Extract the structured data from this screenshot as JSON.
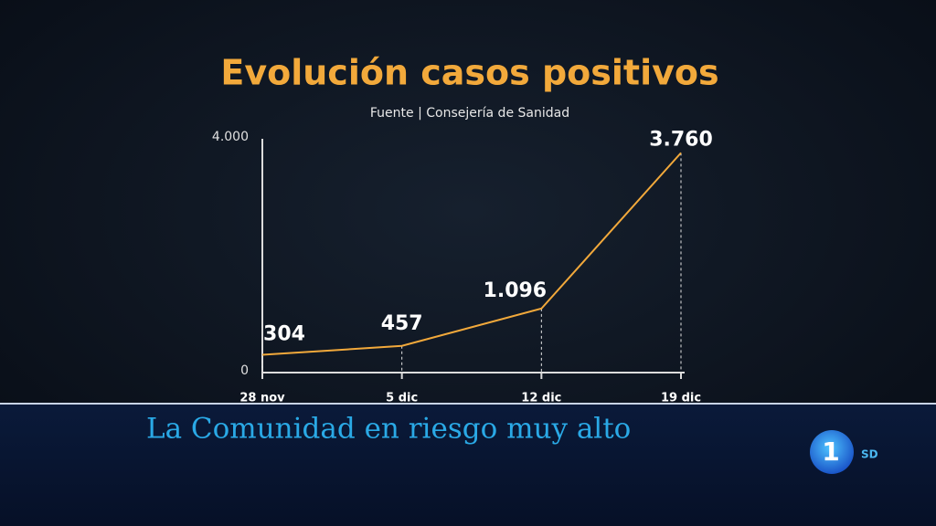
{
  "chart_data": {
    "type": "line",
    "title": "Evolución casos positivos",
    "subtitle": "Fuente | Consejería de Sanidad",
    "categories": [
      "28 nov",
      "5 dic",
      "12 dic",
      "19 dic"
    ],
    "values": [
      304,
      457,
      1096,
      3760
    ],
    "value_labels": [
      "304",
      "457",
      "1.096",
      "3.760"
    ],
    "color": "#f2a93b",
    "ylim": [
      0,
      4000
    ],
    "yticks": [
      0,
      {
        "value": 4000,
        "label": "4.000"
      }
    ]
  },
  "caption": "La Comunidad en riesgo muy alto",
  "channel": {
    "number": "1",
    "quality": "SD"
  }
}
